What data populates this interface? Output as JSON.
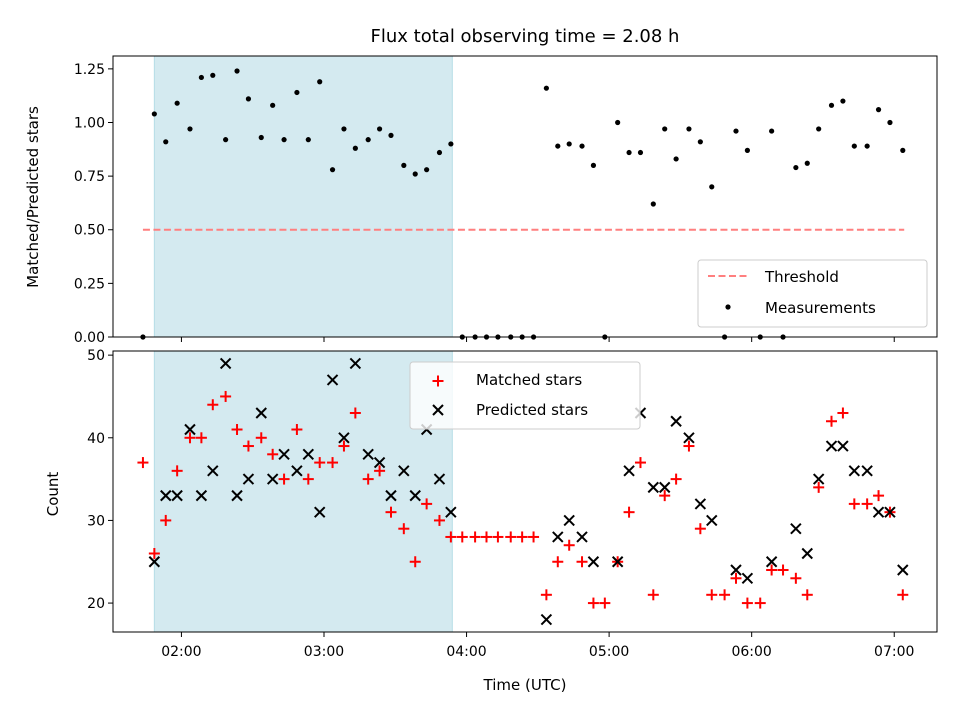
{
  "chart_data": {
    "title": "Flux total observing time = 2.08 h",
    "xlabel": "Time (UTC)",
    "xlim": [
      1.52,
      7.3
    ],
    "x_ticks": [
      2,
      3,
      4,
      5,
      6,
      7
    ],
    "x_tick_labels": [
      "02:00",
      "03:00",
      "04:00",
      "05:00",
      "06:00",
      "07:00"
    ],
    "shaded_interval": [
      1.81,
      3.9
    ],
    "shade_color": "#d4eaf0",
    "panels": [
      {
        "type": "scatter",
        "ylabel": "Matched/Predicted stars",
        "ylim": [
          0,
          1.31
        ],
        "y_ticks": [
          0.0,
          0.25,
          0.5,
          0.75,
          1.0,
          1.25
        ],
        "y_tick_labels": [
          "0.00",
          "0.25",
          "0.50",
          "0.75",
          "1.00",
          "1.25"
        ],
        "legend_position": "bottom-right",
        "threshold": {
          "name": "Threshold",
          "value": 0.5,
          "x_range": [
            1.73,
            7.07
          ],
          "color": "#ff7f7f",
          "style": "dashed"
        },
        "series": [
          {
            "name": "Measurements",
            "marker": "dot",
            "color": "#000000",
            "points": [
              [
                1.73,
                0.0
              ],
              [
                1.81,
                1.04
              ],
              [
                1.89,
                0.91
              ],
              [
                1.97,
                1.09
              ],
              [
                2.06,
                0.97
              ],
              [
                2.14,
                1.21
              ],
              [
                2.22,
                1.22
              ],
              [
                2.31,
                0.92
              ],
              [
                2.39,
                1.24
              ],
              [
                2.47,
                1.11
              ],
              [
                2.56,
                0.93
              ],
              [
                2.64,
                1.08
              ],
              [
                2.72,
                0.92
              ],
              [
                2.81,
                1.14
              ],
              [
                2.89,
                0.92
              ],
              [
                2.97,
                1.19
              ],
              [
                3.06,
                0.78
              ],
              [
                3.14,
                0.97
              ],
              [
                3.22,
                0.88
              ],
              [
                3.31,
                0.92
              ],
              [
                3.39,
                0.97
              ],
              [
                3.47,
                0.94
              ],
              [
                3.56,
                0.8
              ],
              [
                3.64,
                0.76
              ],
              [
                3.72,
                0.78
              ],
              [
                3.81,
                0.86
              ],
              [
                3.89,
                0.9
              ],
              [
                3.97,
                0.0
              ],
              [
                4.06,
                0.0
              ],
              [
                4.14,
                0.0
              ],
              [
                4.22,
                0.0
              ],
              [
                4.31,
                0.0
              ],
              [
                4.39,
                0.0
              ],
              [
                4.47,
                0.0
              ],
              [
                4.56,
                1.16
              ],
              [
                4.64,
                0.89
              ],
              [
                4.72,
                0.9
              ],
              [
                4.81,
                0.89
              ],
              [
                4.89,
                0.8
              ],
              [
                4.97,
                0.0
              ],
              [
                5.06,
                1.0
              ],
              [
                5.14,
                0.86
              ],
              [
                5.22,
                0.86
              ],
              [
                5.31,
                0.62
              ],
              [
                5.39,
                0.97
              ],
              [
                5.47,
                0.83
              ],
              [
                5.56,
                0.97
              ],
              [
                5.64,
                0.91
              ],
              [
                5.72,
                0.7
              ],
              [
                5.81,
                0.0
              ],
              [
                5.89,
                0.96
              ],
              [
                5.97,
                0.87
              ],
              [
                6.06,
                0.0
              ],
              [
                6.14,
                0.96
              ],
              [
                6.22,
                0.0
              ],
              [
                6.31,
                0.79
              ],
              [
                6.39,
                0.81
              ],
              [
                6.47,
                0.97
              ],
              [
                6.56,
                1.08
              ],
              [
                6.64,
                1.1
              ],
              [
                6.72,
                0.89
              ],
              [
                6.81,
                0.89
              ],
              [
                6.89,
                1.06
              ],
              [
                6.97,
                1.0
              ],
              [
                7.06,
                0.87
              ]
            ]
          }
        ]
      },
      {
        "type": "scatter",
        "ylabel": "Count",
        "ylim": [
          16.5,
          50.5
        ],
        "y_ticks": [
          20,
          30,
          40,
          50
        ],
        "y_tick_labels": [
          "20",
          "30",
          "40",
          "50"
        ],
        "legend_position": "top-center",
        "series": [
          {
            "name": "Matched stars",
            "marker": "plus",
            "color": "#ff0000",
            "points": [
              [
                1.73,
                37
              ],
              [
                1.81,
                26
              ],
              [
                1.89,
                30
              ],
              [
                1.97,
                36
              ],
              [
                2.06,
                40
              ],
              [
                2.14,
                40
              ],
              [
                2.22,
                44
              ],
              [
                2.31,
                45
              ],
              [
                2.39,
                41
              ],
              [
                2.47,
                39
              ],
              [
                2.56,
                40
              ],
              [
                2.64,
                38
              ],
              [
                2.72,
                35
              ],
              [
                2.81,
                41
              ],
              [
                2.89,
                35
              ],
              [
                2.97,
                37
              ],
              [
                3.06,
                37
              ],
              [
                3.14,
                39
              ],
              [
                3.22,
                43
              ],
              [
                3.31,
                35
              ],
              [
                3.39,
                36
              ],
              [
                3.47,
                31
              ],
              [
                3.56,
                29
              ],
              [
                3.64,
                25
              ],
              [
                3.72,
                32
              ],
              [
                3.81,
                30
              ],
              [
                3.89,
                28
              ],
              [
                3.97,
                28
              ],
              [
                4.06,
                28
              ],
              [
                4.14,
                28
              ],
              [
                4.22,
                28
              ],
              [
                4.31,
                28
              ],
              [
                4.39,
                28
              ],
              [
                4.47,
                28
              ],
              [
                4.56,
                21
              ],
              [
                4.64,
                25
              ],
              [
                4.72,
                27
              ],
              [
                4.81,
                25
              ],
              [
                4.89,
                20
              ],
              [
                4.97,
                20
              ],
              [
                5.06,
                25
              ],
              [
                5.14,
                31
              ],
              [
                5.22,
                37
              ],
              [
                5.31,
                21
              ],
              [
                5.39,
                33
              ],
              [
                5.47,
                35
              ],
              [
                5.56,
                39
              ],
              [
                5.64,
                29
              ],
              [
                5.72,
                21
              ],
              [
                5.81,
                21
              ],
              [
                5.89,
                23
              ],
              [
                5.97,
                20
              ],
              [
                6.06,
                20
              ],
              [
                6.14,
                24
              ],
              [
                6.22,
                24
              ],
              [
                6.31,
                23
              ],
              [
                6.39,
                21
              ],
              [
                6.47,
                34
              ],
              [
                6.56,
                42
              ],
              [
                6.64,
                43
              ],
              [
                6.72,
                32
              ],
              [
                6.81,
                32
              ],
              [
                6.89,
                33
              ],
              [
                6.97,
                31
              ],
              [
                7.06,
                21
              ]
            ]
          },
          {
            "name": "Predicted stars",
            "marker": "x",
            "color": "#000000",
            "points": [
              [
                1.81,
                25
              ],
              [
                1.89,
                33
              ],
              [
                1.97,
                33
              ],
              [
                2.06,
                41
              ],
              [
                2.14,
                33
              ],
              [
                2.22,
                36
              ],
              [
                2.31,
                49
              ],
              [
                2.39,
                33
              ],
              [
                2.47,
                35
              ],
              [
                2.56,
                43
              ],
              [
                2.64,
                35
              ],
              [
                2.72,
                38
              ],
              [
                2.81,
                36
              ],
              [
                2.89,
                38
              ],
              [
                2.97,
                31
              ],
              [
                3.06,
                47
              ],
              [
                3.14,
                40
              ],
              [
                3.22,
                49
              ],
              [
                3.31,
                38
              ],
              [
                3.39,
                37
              ],
              [
                3.47,
                33
              ],
              [
                3.56,
                36
              ],
              [
                3.64,
                33
              ],
              [
                3.72,
                41
              ],
              [
                3.81,
                35
              ],
              [
                3.89,
                31
              ],
              [
                4.56,
                18
              ],
              [
                4.64,
                28
              ],
              [
                4.72,
                30
              ],
              [
                4.81,
                28
              ],
              [
                4.89,
                25
              ],
              [
                5.06,
                25
              ],
              [
                5.14,
                36
              ],
              [
                5.22,
                43
              ],
              [
                5.31,
                34
              ],
              [
                5.39,
                34
              ],
              [
                5.47,
                42
              ],
              [
                5.56,
                40
              ],
              [
                5.64,
                32
              ],
              [
                5.72,
                30
              ],
              [
                5.89,
                24
              ],
              [
                5.97,
                23
              ],
              [
                6.14,
                25
              ],
              [
                6.31,
                29
              ],
              [
                6.39,
                26
              ],
              [
                6.47,
                35
              ],
              [
                6.56,
                39
              ],
              [
                6.64,
                39
              ],
              [
                6.72,
                36
              ],
              [
                6.81,
                36
              ],
              [
                6.89,
                31
              ],
              [
                6.97,
                31
              ],
              [
                7.06,
                24
              ]
            ]
          }
        ]
      }
    ]
  }
}
